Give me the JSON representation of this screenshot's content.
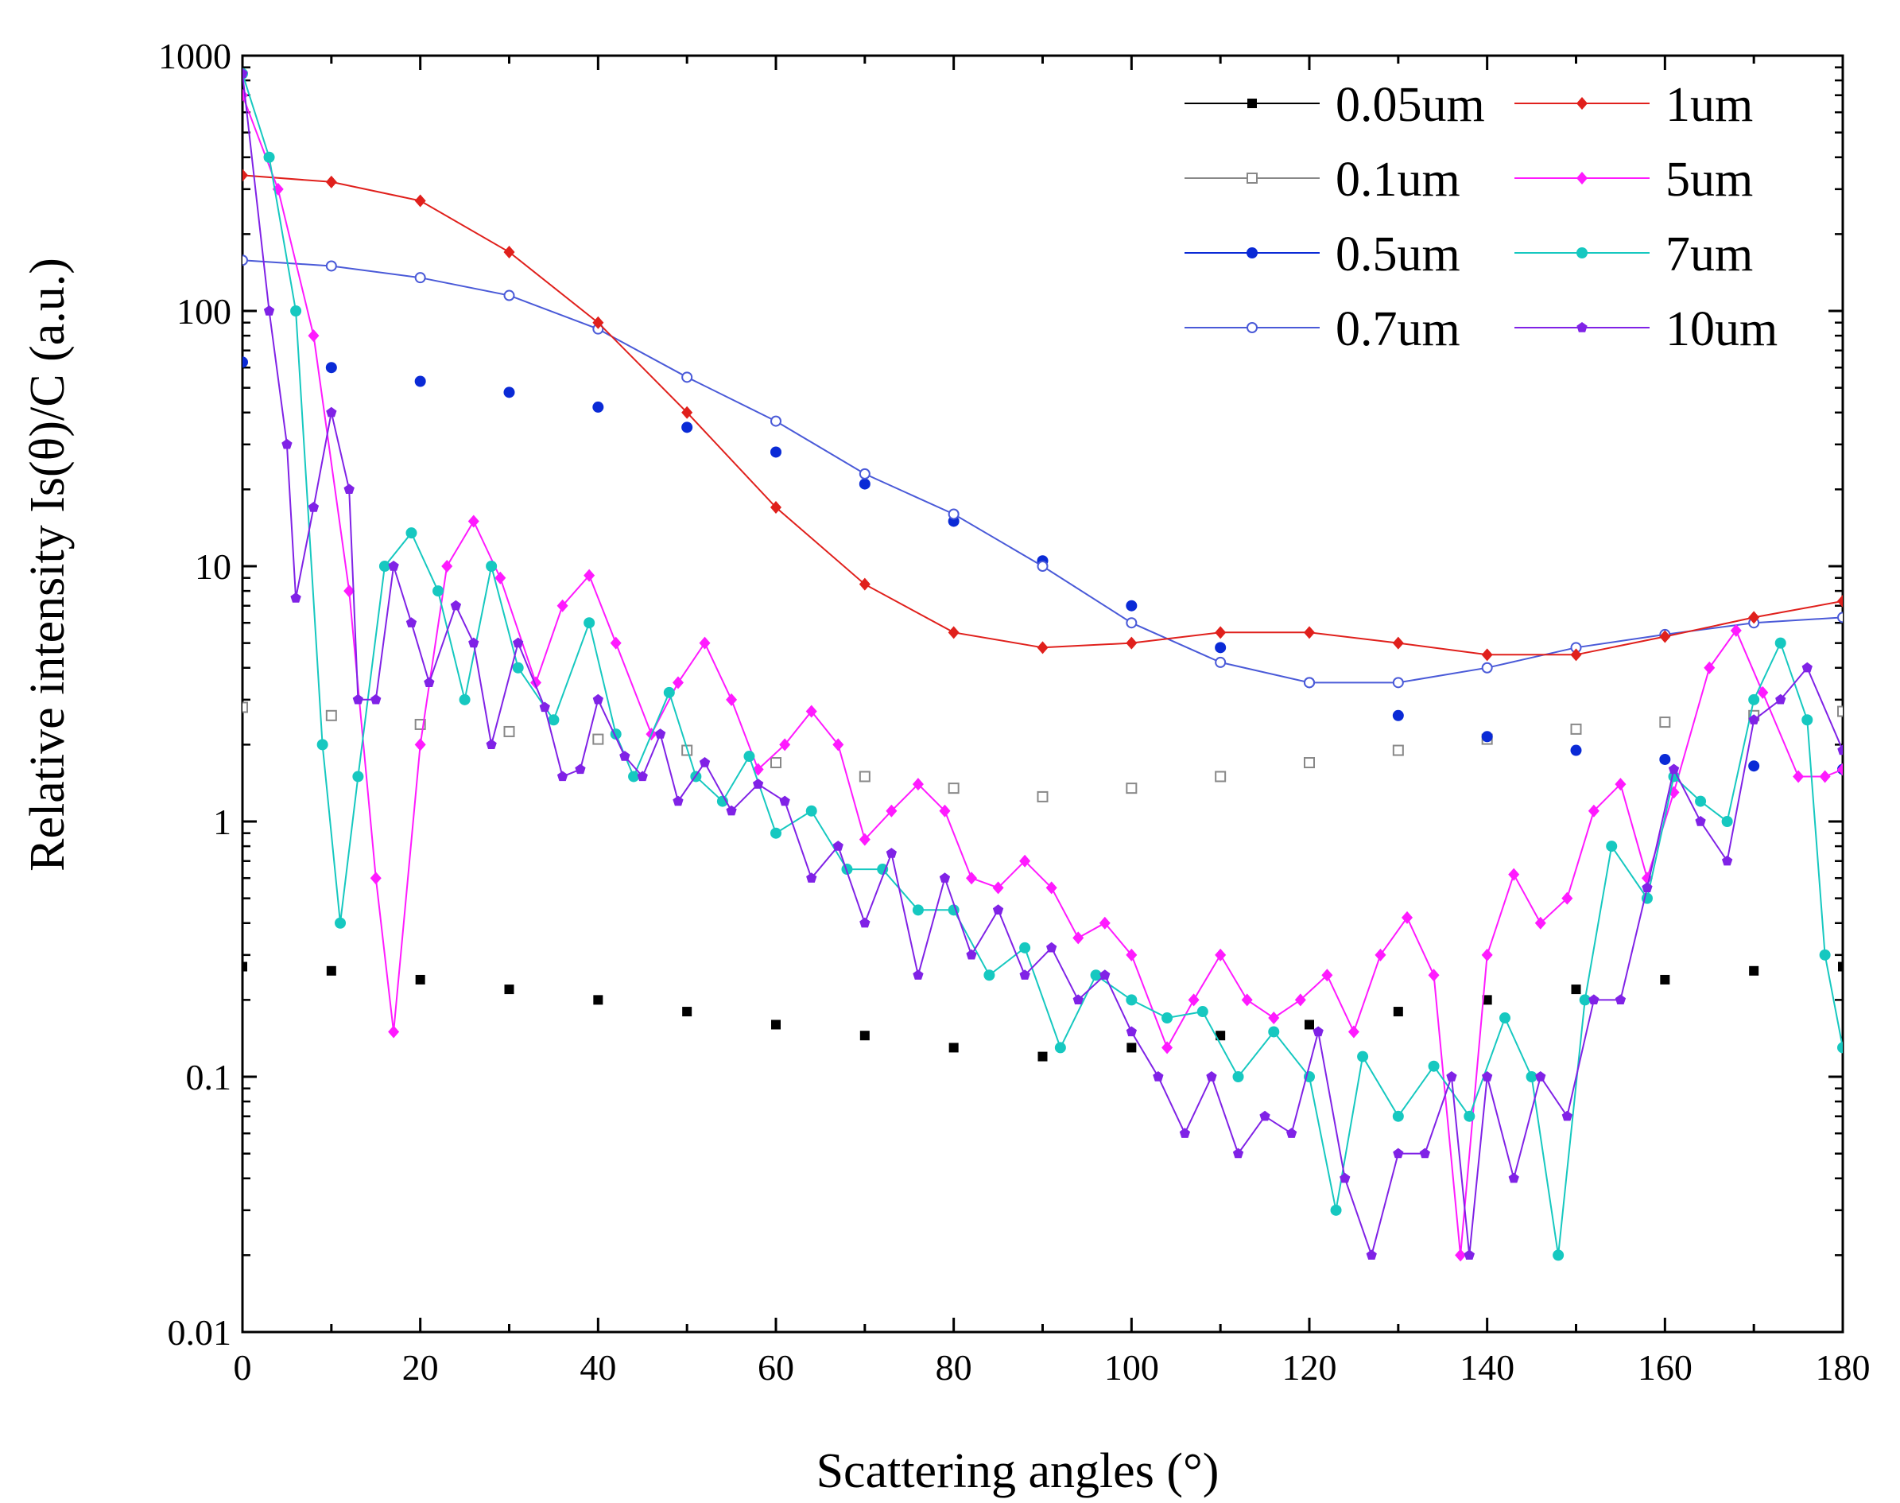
{
  "chart_data": {
    "type": "scatter",
    "title": "",
    "xlabel": "Scattering angles (°)",
    "ylabel": "Relative intensity Is(θ)/C (a.u.)",
    "xlim": [
      0,
      180
    ],
    "ylim": [
      0.01,
      1000
    ],
    "yscale": "log",
    "grid": false,
    "legend_position": "top-right",
    "x_ticks": [
      "0",
      "20",
      "40",
      "60",
      "80",
      "100",
      "120",
      "140",
      "160",
      "180"
    ],
    "y_ticks": [
      "0.01",
      "0.1",
      "1",
      "10",
      "100",
      "1000"
    ],
    "series": [
      {
        "name": "0.05um",
        "color": "#000000",
        "marker": "square-filled",
        "line": false,
        "x": [
          0,
          10,
          20,
          30,
          40,
          50,
          60,
          70,
          80,
          90,
          100,
          110,
          120,
          130,
          140,
          150,
          160,
          170,
          180
        ],
        "y": [
          0.27,
          0.26,
          0.24,
          0.22,
          0.2,
          0.18,
          0.16,
          0.145,
          0.13,
          0.12,
          0.13,
          0.145,
          0.16,
          0.18,
          0.2,
          0.22,
          0.24,
          0.26,
          0.27
        ]
      },
      {
        "name": "0.1um",
        "color": "#888888",
        "marker": "square-open",
        "line": false,
        "x": [
          0,
          10,
          20,
          30,
          40,
          50,
          60,
          70,
          80,
          90,
          100,
          110,
          120,
          130,
          140,
          150,
          160,
          170,
          180
        ],
        "y": [
          2.8,
          2.6,
          2.4,
          2.25,
          2.1,
          1.9,
          1.7,
          1.5,
          1.35,
          1.25,
          1.35,
          1.5,
          1.7,
          1.9,
          2.1,
          2.3,
          2.45,
          2.6,
          2.7
        ]
      },
      {
        "name": "0.5um",
        "color": "#0a2ad6",
        "marker": "circle-filled",
        "line": false,
        "x": [
          0,
          10,
          20,
          30,
          40,
          50,
          60,
          70,
          80,
          90,
          100,
          110,
          120,
          130,
          140,
          150,
          160,
          170,
          180
        ],
        "y": [
          63,
          60,
          53,
          48,
          42,
          35,
          28,
          21,
          15,
          10.5,
          7,
          4.8,
          3.5,
          2.6,
          2.15,
          1.9,
          1.75,
          1.65,
          1.6
        ]
      },
      {
        "name": "0.7um",
        "color": "#4a5ad8",
        "marker": "circle-open",
        "line": true,
        "x": [
          0,
          10,
          20,
          30,
          40,
          50,
          60,
          70,
          80,
          90,
          100,
          110,
          120,
          130,
          140,
          150,
          160,
          170,
          180
        ],
        "y": [
          158,
          150,
          135,
          115,
          85,
          55,
          37,
          23,
          16,
          10,
          6,
          4.2,
          3.5,
          3.5,
          4,
          4.8,
          5.4,
          6,
          6.3
        ]
      },
      {
        "name": "1um",
        "color": "#e0201c",
        "marker": "diamond-filled",
        "line": true,
        "x": [
          0,
          10,
          20,
          30,
          40,
          50,
          60,
          70,
          80,
          90,
          100,
          110,
          120,
          130,
          140,
          150,
          160,
          170,
          180
        ],
        "y": [
          340,
          320,
          270,
          170,
          90,
          40,
          17,
          8.5,
          5.5,
          4.8,
          5,
          5.5,
          5.5,
          5,
          4.5,
          4.5,
          5.3,
          6.3,
          7.3
        ]
      },
      {
        "name": "5um",
        "color": "#ff1aff",
        "marker": "diamond-filled",
        "line": true,
        "x": [
          0,
          4,
          8,
          12,
          15,
          17,
          20,
          23,
          26,
          29,
          33,
          36,
          39,
          42,
          46,
          49,
          52,
          55,
          58,
          61,
          64,
          67,
          70,
          73,
          76,
          79,
          82,
          85,
          88,
          91,
          94,
          97,
          100,
          104,
          107,
          110,
          113,
          116,
          119,
          122,
          125,
          128,
          131,
          134,
          137,
          140,
          143,
          146,
          149,
          152,
          155,
          158,
          161,
          165,
          168,
          171,
          175,
          178,
          180
        ],
        "y": [
          700,
          300,
          80,
          8,
          0.6,
          0.15,
          2,
          10,
          15,
          9,
          3.5,
          7,
          9.2,
          5,
          2.2,
          3.5,
          5,
          3,
          1.6,
          2,
          2.7,
          2,
          0.85,
          1.1,
          1.4,
          1.1,
          0.6,
          0.55,
          0.7,
          0.55,
          0.35,
          0.4,
          0.3,
          0.13,
          0.2,
          0.3,
          0.2,
          0.17,
          0.2,
          0.25,
          0.15,
          0.3,
          0.42,
          0.25,
          0.02,
          0.3,
          0.62,
          0.4,
          0.5,
          1.1,
          1.4,
          0.6,
          1.3,
          4,
          5.6,
          3.2,
          1.5,
          1.5,
          1.6
        ]
      },
      {
        "name": "7um",
        "color": "#16c8c0",
        "marker": "circle-filled",
        "line": true,
        "x": [
          0,
          3,
          6,
          9,
          11,
          13,
          16,
          19,
          22,
          25,
          28,
          31,
          35,
          39,
          42,
          44,
          48,
          51,
          54,
          57,
          60,
          64,
          68,
          72,
          76,
          80,
          84,
          88,
          92,
          96,
          100,
          104,
          108,
          112,
          116,
          120,
          123,
          126,
          130,
          134,
          138,
          142,
          145,
          148,
          151,
          154,
          158,
          161,
          164,
          167,
          170,
          173,
          176,
          178,
          180
        ],
        "y": [
          850,
          400,
          100,
          2,
          0.4,
          1.5,
          10,
          13.5,
          8,
          3,
          10,
          4,
          2.5,
          6,
          2.2,
          1.5,
          3.2,
          1.5,
          1.2,
          1.8,
          0.9,
          1.1,
          0.65,
          0.65,
          0.45,
          0.45,
          0.25,
          0.32,
          0.13,
          0.25,
          0.2,
          0.17,
          0.18,
          0.1,
          0.15,
          0.1,
          0.03,
          0.12,
          0.07,
          0.11,
          0.07,
          0.17,
          0.1,
          0.02,
          0.2,
          0.8,
          0.5,
          1.5,
          1.2,
          1,
          3,
          5,
          2.5,
          0.3,
          0.13
        ]
      },
      {
        "name": "10um",
        "color": "#8022e6",
        "marker": "pentagon-filled",
        "line": true,
        "x": [
          0,
          3,
          5,
          6,
          8,
          10,
          12,
          13,
          15,
          17,
          19,
          21,
          24,
          26,
          28,
          31,
          34,
          36,
          38,
          40,
          43,
          45,
          47,
          49,
          52,
          55,
          58,
          61,
          64,
          67,
          70,
          73,
          76,
          79,
          82,
          85,
          88,
          91,
          94,
          97,
          100,
          103,
          106,
          109,
          112,
          115,
          118,
          121,
          124,
          127,
          130,
          133,
          136,
          138,
          140,
          143,
          146,
          149,
          152,
          155,
          158,
          161,
          164,
          167,
          170,
          173,
          176,
          180
        ],
        "y": [
          850,
          100,
          30,
          7.5,
          17,
          40,
          20,
          3,
          3,
          10,
          6,
          3.5,
          7,
          5,
          2,
          5,
          2.8,
          1.5,
          1.6,
          3,
          1.8,
          1.5,
          2.2,
          1.2,
          1.7,
          1.1,
          1.4,
          1.2,
          0.6,
          0.8,
          0.4,
          0.75,
          0.25,
          0.6,
          0.3,
          0.45,
          0.25,
          0.32,
          0.2,
          0.25,
          0.15,
          0.1,
          0.06,
          0.1,
          0.05,
          0.07,
          0.06,
          0.15,
          0.04,
          0.02,
          0.05,
          0.05,
          0.1,
          0.02,
          0.1,
          0.04,
          0.1,
          0.07,
          0.2,
          0.2,
          0.55,
          1.6,
          1,
          0.7,
          2.5,
          3,
          4,
          1.9
        ]
      }
    ]
  }
}
